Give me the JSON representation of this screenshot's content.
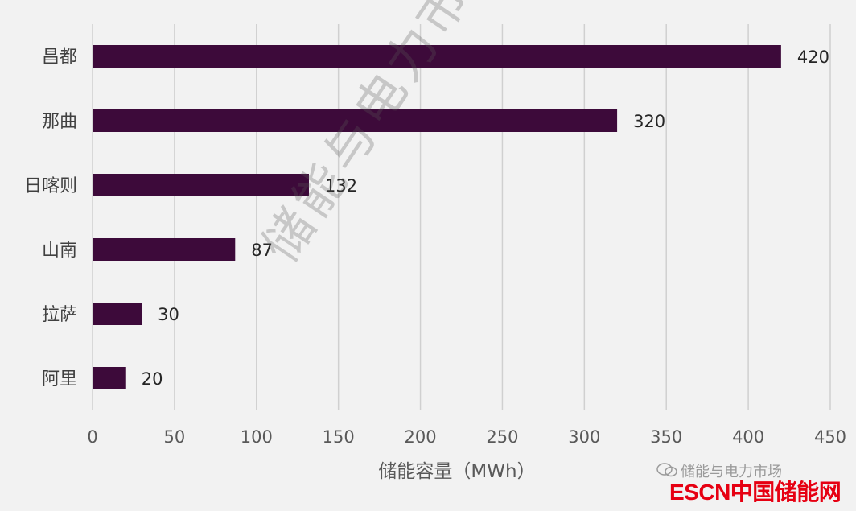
{
  "chart_data": {
    "type": "bar",
    "orientation": "horizontal",
    "categories": [
      "昌都",
      "那曲",
      "日喀则",
      "山南",
      "拉萨",
      "阿里"
    ],
    "values": [
      420,
      320,
      132,
      87,
      30,
      20
    ],
    "xlabel": "储能容量（MWh）",
    "xlim": [
      0,
      450
    ],
    "xticks": [
      0,
      50,
      100,
      150,
      200,
      250,
      300,
      350,
      400,
      450
    ],
    "grid": "vertical",
    "bar_color": "#3d0a3a",
    "data_labels": true
  },
  "watermark": {
    "text": "储能与电力市场",
    "corner_text": "储能与电力市场",
    "logo": "ESCN中国储能网"
  }
}
